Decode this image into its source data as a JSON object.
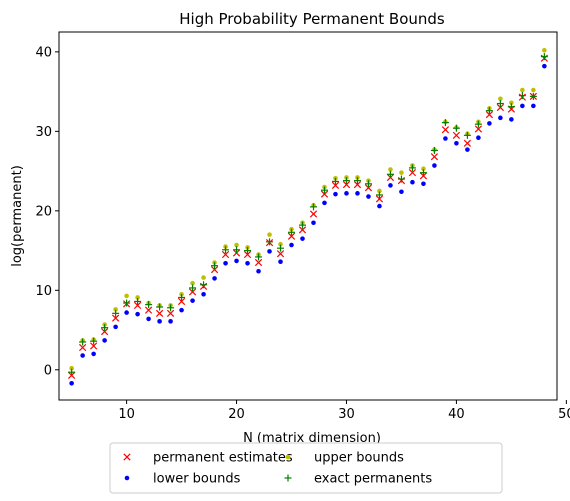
{
  "chart_data": {
    "type": "scatter",
    "title": "High Probability Permanent Bounds",
    "xlabel": "N (matrix dimension)",
    "ylabel": "log(permanent)",
    "xlim": [
      3.85,
      49.15
    ],
    "ylim": [
      -3.8,
      42.5
    ],
    "xticks": [
      10,
      20,
      30,
      40,
      50
    ],
    "yticks": [
      0,
      10,
      20,
      30,
      40
    ],
    "grid": false,
    "legend_position": "below plot, two columns",
    "x": [
      5,
      6,
      7,
      8,
      9,
      10,
      11,
      12,
      13,
      14,
      15,
      16,
      17,
      18,
      19,
      20,
      21,
      22,
      23,
      24,
      25,
      26,
      27,
      28,
      29,
      30,
      31,
      32,
      33,
      34,
      35,
      36,
      37,
      38,
      39,
      40,
      41,
      42,
      43,
      44,
      45,
      46,
      47,
      48
    ],
    "series": [
      {
        "name": "permanent estimates",
        "marker": "x",
        "color": "#ff0000",
        "values": [
          -0.7,
          2.8,
          3.0,
          4.8,
          6.5,
          8.3,
          8.1,
          7.5,
          7.1,
          7.1,
          8.6,
          9.8,
          10.5,
          12.6,
          14.5,
          14.7,
          14.5,
          13.5,
          16.0,
          14.6,
          16.8,
          17.6,
          19.6,
          22.1,
          23.2,
          23.3,
          23.3,
          22.9,
          21.5,
          24.2,
          23.8,
          24.8,
          24.4,
          26.8,
          30.2,
          29.5,
          28.5,
          30.3,
          32.1,
          33.0,
          32.8,
          34.3,
          34.4,
          39.2
        ]
      },
      {
        "name": "lower bounds",
        "marker": "dot",
        "color": "#0000ff",
        "values": [
          -1.7,
          1.8,
          2.0,
          3.7,
          5.4,
          7.2,
          7.0,
          6.4,
          6.1,
          6.1,
          7.5,
          8.7,
          9.5,
          11.5,
          13.4,
          13.7,
          13.4,
          12.4,
          14.9,
          13.6,
          15.7,
          16.5,
          18.5,
          21.0,
          22.1,
          22.2,
          22.2,
          21.8,
          20.6,
          23.2,
          22.4,
          23.6,
          23.4,
          25.7,
          29.1,
          28.5,
          27.7,
          29.2,
          31.0,
          31.7,
          31.5,
          33.2,
          33.2,
          38.2
        ]
      },
      {
        "name": "upper bounds",
        "marker": "dot",
        "color": "#bfbf00",
        "values": [
          0.2,
          3.7,
          3.8,
          5.7,
          7.6,
          9.3,
          9.1,
          8.4,
          8.1,
          8.1,
          9.5,
          10.9,
          11.6,
          13.5,
          15.5,
          15.7,
          15.4,
          14.5,
          17.0,
          15.8,
          17.7,
          18.5,
          20.7,
          23.0,
          24.1,
          24.2,
          24.2,
          23.8,
          22.5,
          25.2,
          24.8,
          25.7,
          25.3,
          27.7,
          31.2,
          30.5,
          29.7,
          31.2,
          32.9,
          34.1,
          33.6,
          35.2,
          35.2,
          40.2
        ]
      },
      {
        "name": "exact permanents",
        "marker": "plus",
        "color": "#007f00",
        "values": [
          -0.3,
          3.5,
          3.6,
          5.3,
          7.1,
          8.4,
          8.6,
          8.2,
          7.9,
          7.8,
          9.1,
          10.3,
          10.7,
          13.1,
          15.1,
          15.1,
          15.0,
          14.2,
          16.1,
          15.3,
          17.3,
          18.2,
          20.5,
          22.6,
          23.7,
          23.8,
          23.8,
          23.4,
          22.0,
          24.6,
          24.0,
          25.4,
          24.8,
          27.6,
          31.1,
          30.4,
          29.5,
          30.9,
          32.6,
          33.5,
          33.1,
          34.5,
          34.4,
          39.4
        ]
      }
    ]
  }
}
